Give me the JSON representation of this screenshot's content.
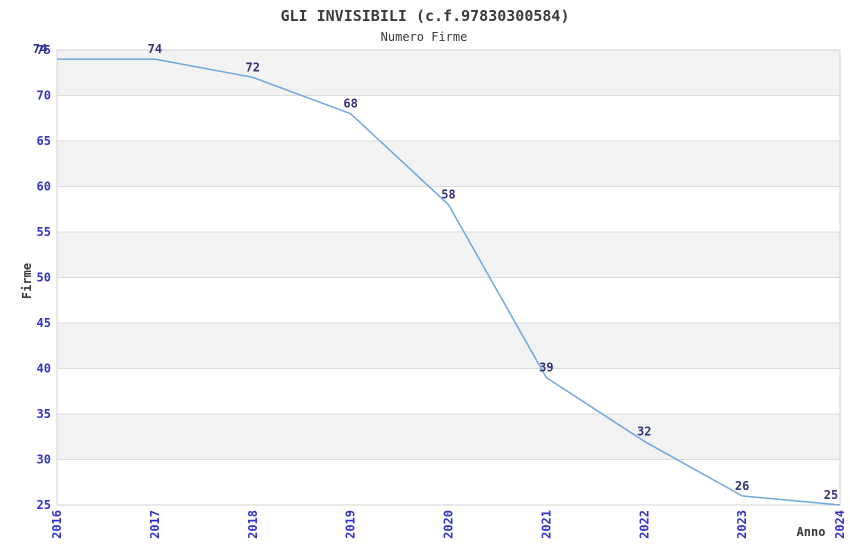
{
  "chart": {
    "title": "GLI INVISIBILI (c.f.97830300584)",
    "subtitle": "Numero Firme",
    "ylabel": "Firme",
    "xlabel": "Anno"
  },
  "chart_data": {
    "type": "line",
    "title": "GLI INVISIBILI (c.f.97830300584)",
    "subtitle": "Numero Firme",
    "xlabel": "Anno",
    "ylabel": "Firme",
    "x": [
      2016,
      2017,
      2018,
      2019,
      2020,
      2021,
      2022,
      2023,
      2024
    ],
    "series": [
      {
        "name": "Numero Firme",
        "values": [
          74,
          74,
          72,
          68,
          58,
          39,
          32,
          26,
          25
        ]
      }
    ],
    "point_labels": [
      "74",
      "74",
      "72",
      "68",
      "58",
      "39",
      "32",
      "26",
      "25"
    ],
    "ylim": [
      25,
      75
    ],
    "ytick_step": 5,
    "yticks": [
      25,
      30,
      35,
      40,
      45,
      50,
      55,
      60,
      65,
      70,
      75
    ],
    "grid": true,
    "legend": "none",
    "banded_background": true,
    "colors": {
      "line": "#6fa8e0",
      "tick_label": "#3333cc",
      "point_label": "#333377",
      "band_gray": "#f2f2f2",
      "band_white": "#ffffff",
      "gridline": "#dcdcdc",
      "axis_border": "#d3d3d3",
      "title_text": "#3a3a3a",
      "background": "#ffffff"
    }
  }
}
